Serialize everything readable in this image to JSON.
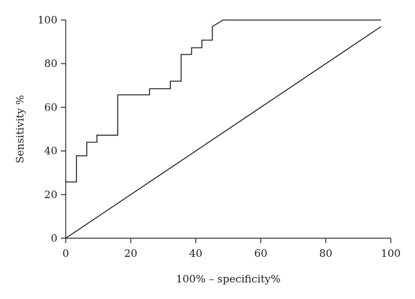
{
  "chart_data": {
    "type": "line",
    "title": "",
    "xlabel": "100% – specificity%",
    "ylabel": "Sensitivity %",
    "xlim": [
      0,
      100
    ],
    "ylim": [
      0,
      100
    ],
    "x_ticks": [
      0,
      20,
      40,
      60,
      80,
      100
    ],
    "y_ticks": [
      0,
      20,
      40,
      60,
      80,
      100
    ],
    "grid": false,
    "legend": "none",
    "series": [
      {
        "style": "step",
        "color": "#111111",
        "x": [
          0,
          3.3,
          3.3,
          6.5,
          6.5,
          9.6,
          9.6,
          16,
          16,
          25.8,
          25.8,
          32.2,
          32.2,
          35.5,
          35.5,
          38.7,
          38.7,
          41.9,
          41.9,
          45.1,
          45.1,
          48.4,
          97
        ],
        "y": [
          25.8,
          25.8,
          37.8,
          37.8,
          44,
          44,
          47.2,
          47.2,
          65.7,
          65.7,
          68.5,
          68.5,
          72,
          72,
          84.2,
          84.2,
          87.3,
          87.3,
          90.8,
          90.8,
          97,
          100,
          100
        ]
      },
      {
        "style": "line",
        "color": "#111111",
        "x": [
          0,
          97
        ],
        "y": [
          0,
          97
        ]
      }
    ]
  }
}
